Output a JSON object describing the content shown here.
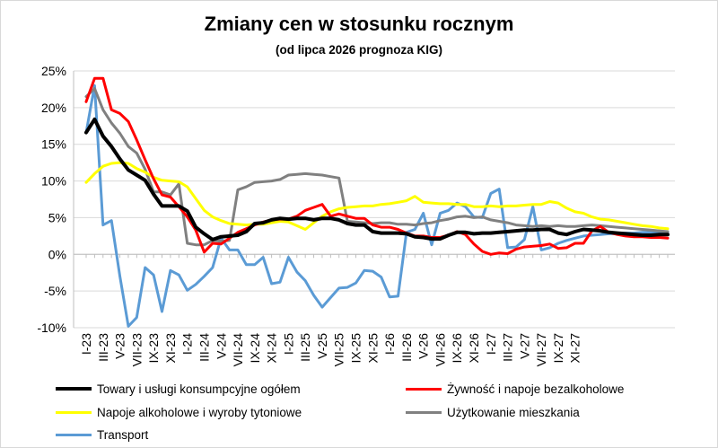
{
  "chart_data": {
    "type": "line",
    "title": "Zmiany cen w stosunku rocznym",
    "subtitle": "(od lipca 2026 prognoza KIG)",
    "xlabel": "",
    "ylabel": "",
    "ylim": [
      -10,
      25
    ],
    "ytick_labels": [
      "25%",
      "20%",
      "15%",
      "10%",
      "5%",
      "0%",
      "-5%",
      "-10%"
    ],
    "ytick_values": [
      25,
      20,
      15,
      10,
      5,
      0,
      -5,
      -10
    ],
    "x_labels": [
      "I-23",
      "III-23",
      "V-23",
      "VII-23",
      "IX-23",
      "XI-23",
      "I-24",
      "III-24",
      "V-24",
      "VII-24",
      "IX-24",
      "XI-24",
      "I-25",
      "III-25",
      "V-25",
      "VII-25",
      "IX-25",
      "XI-25",
      "I-26",
      "III-26",
      "V-26",
      "VII-26",
      "IX-26",
      "XI-26",
      "I-27",
      "III-27",
      "V-27",
      "VII-27",
      "IX-27",
      "XI-27"
    ],
    "legend_position": "bottom",
    "grid": "horizontal",
    "series": [
      {
        "name": "Towary i usługi konsumpcyjne ogółem",
        "color": "#000000",
        "width": 4,
        "values": [
          16.6,
          18.4,
          16.1,
          14.7,
          13.0,
          11.5,
          10.8,
          10.1,
          8.2,
          6.6,
          6.6,
          6.6,
          5.9,
          3.7,
          2.8,
          2.0,
          2.4,
          2.5,
          2.6,
          3.1,
          4.2,
          4.3,
          4.7,
          4.9,
          4.8,
          4.9,
          4.9,
          4.7,
          4.9,
          4.9,
          4.7,
          4.2,
          4.0,
          4.0,
          3.1,
          2.9,
          2.9,
          2.9,
          2.8,
          2.4,
          2.3,
          2.1,
          2.1,
          2.6,
          3.0,
          3.0,
          2.8,
          2.9,
          2.9,
          3.0,
          3.1,
          3.2,
          3.3,
          3.3,
          3.4,
          3.4,
          2.9,
          2.7,
          3.1,
          3.4,
          3.3,
          3.2,
          3.0,
          2.9,
          2.8,
          2.7,
          2.6,
          2.6,
          2.7,
          2.7
        ]
      },
      {
        "name": "Żywność i napoje bezalkoholowe",
        "color": "#ff0000",
        "width": 3,
        "values": [
          20.8,
          24.0,
          24.0,
          19.7,
          19.2,
          18.1,
          15.6,
          12.9,
          10.3,
          8.1,
          7.8,
          6.5,
          5.1,
          3.3,
          0.3,
          1.5,
          1.4,
          2.2,
          3.0,
          3.5,
          4.0,
          4.4,
          4.7,
          4.8,
          4.8,
          5.2,
          6.0,
          6.4,
          6.8,
          5.2,
          5.5,
          5.2,
          4.9,
          4.9,
          4.0,
          3.7,
          3.7,
          3.4,
          2.9,
          2.5,
          2.5,
          2.3,
          2.3,
          2.6,
          3.1,
          2.7,
          1.4,
          0.4,
          0.0,
          0.2,
          0.1,
          0.7,
          1.0,
          1.1,
          1.2,
          1.4,
          0.8,
          0.9,
          1.5,
          1.5,
          3.2,
          3.8,
          3.0,
          2.7,
          2.5,
          2.4,
          2.4,
          2.3,
          2.3,
          2.2
        ]
      },
      {
        "name": "Napoje alkoholowe i wyroby tytoniowe",
        "color": "#ffff00",
        "width": 3,
        "values": [
          9.8,
          11.0,
          12.0,
          12.4,
          12.5,
          12.4,
          11.7,
          11.2,
          10.5,
          10.1,
          10.0,
          9.9,
          9.2,
          7.6,
          6.0,
          5.1,
          4.6,
          4.2,
          4.1,
          4.0,
          4.1,
          4.1,
          4.3,
          4.5,
          4.4,
          3.9,
          3.4,
          4.3,
          5.2,
          5.8,
          6.2,
          6.4,
          6.5,
          6.6,
          6.6,
          6.8,
          6.9,
          7.1,
          7.3,
          7.9,
          7.1,
          7.0,
          6.9,
          6.9,
          6.8,
          6.8,
          6.5,
          6.5,
          6.6,
          6.5,
          6.6,
          6.6,
          6.7,
          6.8,
          6.8,
          7.2,
          7.0,
          6.3,
          5.8,
          5.6,
          5.1,
          4.8,
          4.7,
          4.5,
          4.3,
          4.1,
          3.9,
          3.8,
          3.6,
          3.5
        ]
      },
      {
        "name": "Użytkowanie mieszkania",
        "color": "#808080",
        "width": 3,
        "values": [
          21.5,
          22.6,
          19.7,
          17.9,
          16.5,
          14.7,
          13.8,
          11.6,
          8.5,
          8.5,
          8.1,
          9.6,
          1.5,
          1.3,
          1.3,
          1.9,
          1.8,
          1.9,
          8.8,
          9.2,
          9.8,
          9.9,
          10.0,
          10.2,
          10.8,
          10.9,
          11.0,
          10.9,
          10.8,
          10.6,
          10.4,
          4.5,
          4.4,
          4.3,
          4.2,
          4.3,
          4.3,
          4.1,
          4.1,
          4.0,
          4.2,
          4.3,
          4.6,
          4.8,
          5.1,
          5.2,
          5.0,
          5.1,
          4.7,
          4.5,
          4.3,
          4.0,
          3.9,
          3.8,
          3.9,
          3.8,
          3.9,
          3.8,
          3.8,
          3.9,
          4.0,
          3.9,
          3.8,
          3.7,
          3.6,
          3.5,
          3.4,
          3.3,
          3.2,
          3.1
        ]
      },
      {
        "name": "Transport",
        "color": "#5b9bd5",
        "width": 3,
        "values": [
          16.6,
          23.0,
          4.0,
          4.6,
          -3.0,
          -9.8,
          -8.6,
          -1.8,
          -2.8,
          -7.8,
          -2.2,
          -2.8,
          -4.9,
          -4.1,
          -3.0,
          -1.8,
          2.2,
          0.6,
          0.6,
          -1.4,
          -1.4,
          -0.4,
          -4.0,
          -3.8,
          -0.4,
          -2.4,
          -3.6,
          -5.6,
          -7.2,
          -5.9,
          -4.6,
          -4.5,
          -3.9,
          -2.2,
          -2.3,
          -3.1,
          -5.8,
          -5.7,
          3.0,
          3.4,
          5.6,
          1.3,
          5.6,
          6.0,
          7.0,
          6.5,
          5.1,
          5.0,
          8.3,
          8.9,
          0.9,
          1.0,
          2.0,
          6.5,
          0.6,
          0.9,
          1.5,
          1.9,
          2.2,
          2.5,
          2.6,
          2.7,
          2.8,
          2.8,
          2.9,
          2.9,
          3.0,
          3.0,
          3.0,
          3.0
        ]
      }
    ]
  }
}
